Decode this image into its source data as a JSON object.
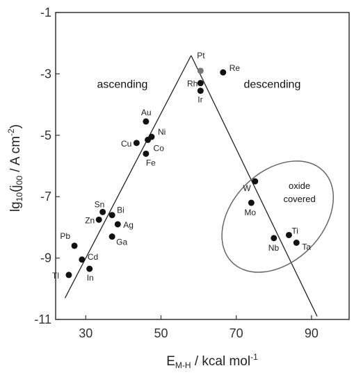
{
  "chart_data": {
    "type": "scatter",
    "xlim": [
      22,
      100
    ],
    "ylim": [
      -11,
      -1
    ],
    "xticks": [
      30,
      50,
      70,
      90
    ],
    "yticks": [
      -1,
      -3,
      -5,
      -7,
      -9,
      -11
    ],
    "xlabel": {
      "main": "E",
      "sub": "M-H",
      "rest": " / kcal mol",
      "sup": "-1"
    },
    "ylabel": {
      "pre": "lg",
      "sub1": "10",
      "mid1": "(j",
      "sub2": "00",
      "mid2": " / A cm",
      "sup": "-2",
      "post": ")"
    },
    "points": [
      {
        "label": "Tl",
        "x": 25.5,
        "y": -9.55
      },
      {
        "label": "Pb",
        "x": 27.0,
        "y": -8.6
      },
      {
        "label": "Cd",
        "x": 29.0,
        "y": -9.05
      },
      {
        "label": "In",
        "x": 31.0,
        "y": -9.35
      },
      {
        "label": "Zn",
        "x": 33.5,
        "y": -7.75
      },
      {
        "label": "Sn",
        "x": 34.5,
        "y": -7.5
      },
      {
        "label": "Bi",
        "x": 37.0,
        "y": -7.6
      },
      {
        "label": "Ag",
        "x": 38.5,
        "y": -7.9
      },
      {
        "label": "Ga",
        "x": 37.0,
        "y": -8.3
      },
      {
        "label": "Cu",
        "x": 43.5,
        "y": -5.25
      },
      {
        "label": "Au",
        "x": 46.0,
        "y": -4.55
      },
      {
        "label": "Fe",
        "x": 46.0,
        "y": -5.6
      },
      {
        "label": "Co",
        "x": 46.5,
        "y": -5.15
      },
      {
        "label": "Ni",
        "x": 47.5,
        "y": -5.05
      },
      {
        "label": "Pt",
        "x": 60.5,
        "y": -2.9
      },
      {
        "label": "Rh",
        "x": 60.5,
        "y": -3.3
      },
      {
        "label": "Ir",
        "x": 60.5,
        "y": -3.55
      },
      {
        "label": "Re",
        "x": 66.5,
        "y": -2.95
      },
      {
        "label": "W",
        "x": 75.0,
        "y": -6.5
      },
      {
        "label": "Mo",
        "x": 74.0,
        "y": -7.2
      },
      {
        "label": "Nb",
        "x": 80.0,
        "y": -8.35
      },
      {
        "label": "Ti",
        "x": 84.0,
        "y": -8.25
      },
      {
        "label": "Ta",
        "x": 86.0,
        "y": -8.5
      }
    ],
    "lines": [
      {
        "name": "ascending",
        "x": [
          24.5,
          58.0
        ],
        "y": [
          -10.3,
          -2.4
        ]
      },
      {
        "name": "descending",
        "x": [
          58.0,
          91.5
        ],
        "y": [
          -2.4,
          -10.9
        ]
      }
    ],
    "annotations": [
      {
        "text": "ascending",
        "x": 33,
        "y": -3.45
      },
      {
        "text": "descending",
        "x": 72,
        "y": -3.45
      }
    ],
    "ellipse": {
      "cx": 81.0,
      "cy": -7.65,
      "rx": 12.0,
      "ry": 2.1,
      "rotate_deg": 45,
      "label_lines": [
        "oxide",
        "covered"
      ]
    }
  }
}
